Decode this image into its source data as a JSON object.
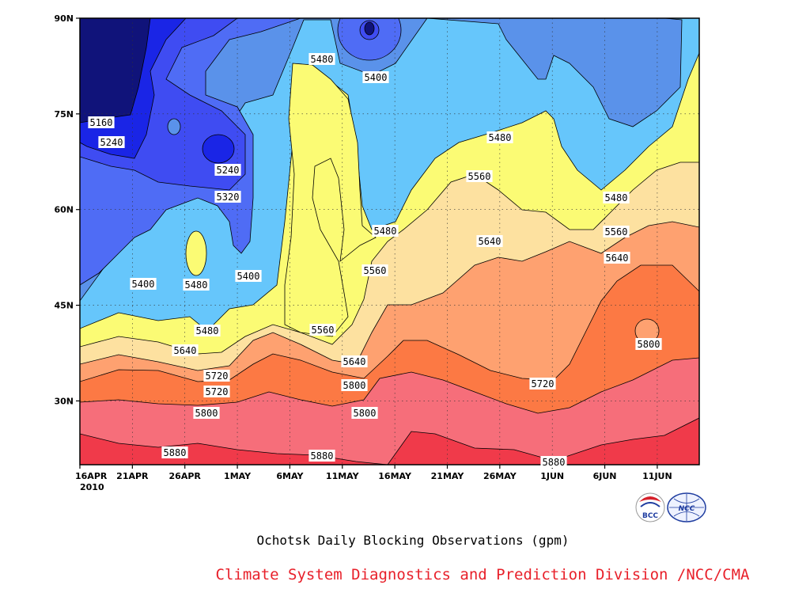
{
  "chart_data": {
    "type": "contour",
    "title": "Ochotsk Daily Blocking Observations (gpm)",
    "credit": "Climate System Diagnostics and Prediction Division /NCC/CMA",
    "year_label": "2010",
    "x_tick_labels": [
      "16APR",
      "21APR",
      "26APR",
      "1MAY",
      "6MAY",
      "11MAY",
      "16MAY",
      "21MAY",
      "26MAY",
      "1JUN",
      "6JUN",
      "11JUN"
    ],
    "y_tick_labels": [
      "90N",
      "75N",
      "60N",
      "45N",
      "30N"
    ],
    "y_ticks": [
      90,
      75,
      60,
      45,
      30
    ],
    "ylim": [
      20,
      90
    ],
    "xlim": [
      "2010-04-16",
      "2010-06-14"
    ],
    "grid": true,
    "contour_levels": [
      5160,
      5240,
      5320,
      5400,
      5480,
      5560,
      5640,
      5720,
      5800,
      5880
    ],
    "colors": {
      "below_5160": "#10137a",
      "5160_5240": "#1a25e6",
      "5240_5320": "#3f4cf2",
      "5320_5400": "#4f6cf5",
      "5400_5480": "#5a92ea",
      "5480_5560": "#66c6fb",
      "5560_5640": "#fbfb74",
      "5640_5720": "#fde1a0",
      "5720_5800": "#fea170",
      "5800_5880": "#fc7944",
      "5880_5960": "#f66e7a",
      "above_5960": "#f03a4a"
    },
    "contour_labels": [
      {
        "value": "5160"
      },
      {
        "value": "5240"
      },
      {
        "value": "5240"
      },
      {
        "value": "5320"
      },
      {
        "value": "5400"
      },
      {
        "value": "5480"
      },
      {
        "value": "5400"
      },
      {
        "value": "5480"
      },
      {
        "value": "5400"
      },
      {
        "value": "5480"
      },
      {
        "value": "5480"
      },
      {
        "value": "5560"
      },
      {
        "value": "5480"
      },
      {
        "value": "5560"
      },
      {
        "value": "5560"
      },
      {
        "value": "5560"
      },
      {
        "value": "5640"
      },
      {
        "value": "5640"
      },
      {
        "value": "5640"
      },
      {
        "value": "5720"
      },
      {
        "value": "5720"
      },
      {
        "value": "5800"
      },
      {
        "value": "5800"
      },
      {
        "value": "5800"
      },
      {
        "value": "5880"
      },
      {
        "value": "5880"
      },
      {
        "value": "5880"
      },
      {
        "value": "5720"
      },
      {
        "value": "5480"
      },
      {
        "value": "5560"
      },
      {
        "value": "5640"
      },
      {
        "value": "5800"
      }
    ]
  },
  "logos": [
    {
      "name": "bcc-logo",
      "text": "BCC"
    },
    {
      "name": "ncc-logo",
      "text": "NCC"
    }
  ]
}
